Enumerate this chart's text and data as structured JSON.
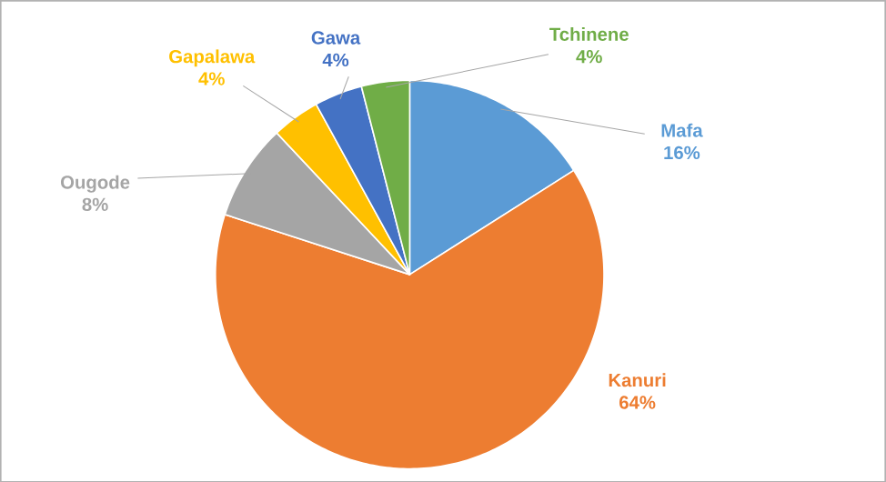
{
  "chart_data": {
    "type": "pie",
    "categories": [
      "Mafa",
      "Kanuri",
      "Ougode",
      "Gapalawa",
      "Gawa",
      "Tchinene"
    ],
    "values": [
      16,
      64,
      8,
      4,
      4,
      4
    ],
    "value_labels": [
      "16%",
      "64%",
      "8%",
      "4%",
      "4%",
      "4%"
    ],
    "colors": [
      "#5b9bd5",
      "#ed7d31",
      "#a5a5a5",
      "#ffc000",
      "#4472c4",
      "#70ad47"
    ]
  }
}
